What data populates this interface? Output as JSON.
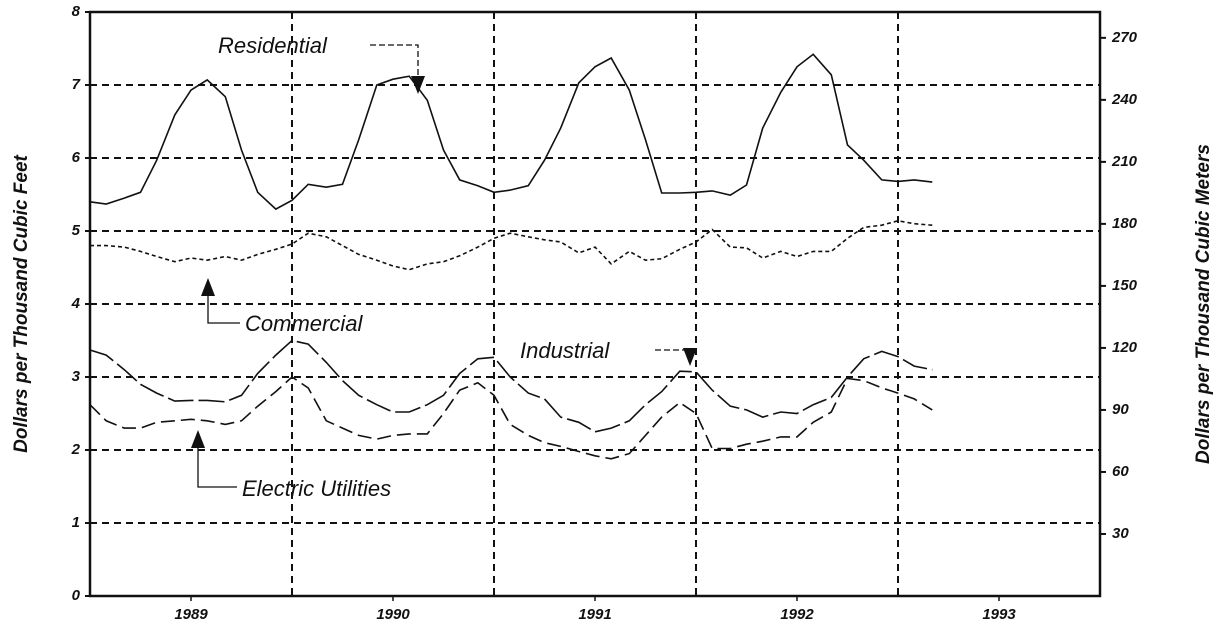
{
  "chart_data": {
    "type": "line",
    "ylabel": "Dollars per Thousand Cubic Feet",
    "y2label": "Dollars per Thousand Cubic Meters",
    "xlim": [
      1989,
      1994
    ],
    "xticks": [
      {
        "value": 1989.5,
        "label": "1989"
      },
      {
        "value": 1990.5,
        "label": "1990"
      },
      {
        "value": 1991.5,
        "label": "1991"
      },
      {
        "value": 1992.5,
        "label": "1992"
      },
      {
        "value": 1993.5,
        "label": "1993"
      }
    ],
    "xgrid": [
      1990,
      1991,
      1992,
      1993
    ],
    "ylim": [
      0,
      8
    ],
    "yticks": [
      0,
      1,
      2,
      3,
      4,
      5,
      6,
      7,
      8
    ],
    "y2lim": [
      0,
      282.5
    ],
    "y2ticks": [
      30,
      60,
      90,
      120,
      150,
      180,
      210,
      240,
      270
    ],
    "grid": true,
    "x": [
      1989.0,
      1989.08,
      1989.17,
      1989.25,
      1989.33,
      1989.42,
      1989.5,
      1989.58,
      1989.67,
      1989.75,
      1989.83,
      1989.92,
      1990.0,
      1990.08,
      1990.17,
      1990.25,
      1990.33,
      1990.42,
      1990.5,
      1990.58,
      1990.67,
      1990.75,
      1990.83,
      1990.92,
      1991.0,
      1991.08,
      1991.17,
      1991.25,
      1991.33,
      1991.42,
      1991.5,
      1991.58,
      1991.67,
      1991.75,
      1991.83,
      1991.92,
      1992.0,
      1992.08,
      1992.17,
      1992.25,
      1992.33,
      1992.42,
      1992.5,
      1992.58,
      1992.67,
      1992.75,
      1992.83,
      1992.92,
      1993.0,
      1993.08,
      1993.17
    ],
    "series": [
      {
        "name": "Residential",
        "color": "#111111",
        "dash": "none",
        "values": [
          5.4,
          5.37,
          5.45,
          5.53,
          5.97,
          6.59,
          6.93,
          7.07,
          6.84,
          6.11,
          5.53,
          5.3,
          5.42,
          5.64,
          5.6,
          5.64,
          6.25,
          7.0,
          7.08,
          7.12,
          6.79,
          6.11,
          5.7,
          5.62,
          5.53,
          5.56,
          5.62,
          5.97,
          6.41,
          7.03,
          7.25,
          7.37,
          6.93,
          6.25,
          5.52,
          5.52,
          5.53,
          5.55,
          5.49,
          5.63,
          6.41,
          6.9,
          7.25,
          7.42,
          7.14,
          6.18,
          5.97,
          5.7,
          5.68,
          5.7,
          5.67
        ]
      },
      {
        "name": "Commercial",
        "color": "#111111",
        "dash": "4,3",
        "values": [
          4.8,
          4.8,
          4.78,
          4.72,
          4.65,
          4.58,
          4.63,
          4.6,
          4.65,
          4.6,
          4.68,
          4.75,
          4.82,
          4.97,
          4.92,
          4.8,
          4.68,
          4.6,
          4.52,
          4.47,
          4.55,
          4.58,
          4.66,
          4.78,
          4.9,
          4.97,
          4.92,
          4.88,
          4.85,
          4.7,
          4.78,
          4.55,
          4.72,
          4.6,
          4.62,
          4.75,
          4.85,
          5.02,
          4.78,
          4.77,
          4.63,
          4.72,
          4.65,
          4.72,
          4.72,
          4.9,
          5.05,
          5.08,
          5.14,
          5.1,
          5.08
        ]
      },
      {
        "name": "Industrial",
        "color": "#111111",
        "dash": "26,5",
        "values": [
          3.37,
          3.3,
          3.1,
          2.9,
          2.78,
          2.67,
          2.68,
          2.68,
          2.66,
          2.75,
          3.05,
          3.3,
          3.5,
          3.45,
          3.2,
          2.95,
          2.75,
          2.62,
          2.52,
          2.52,
          2.62,
          2.75,
          3.05,
          3.25,
          3.27,
          3.0,
          2.78,
          2.7,
          2.45,
          2.38,
          2.25,
          2.3,
          2.4,
          2.62,
          2.8,
          3.08,
          3.07,
          2.82,
          2.6,
          2.55,
          2.45,
          2.52,
          2.5,
          2.62,
          2.72,
          3.0,
          3.25,
          3.35,
          3.28,
          3.15,
          3.1
        ]
      },
      {
        "name": "Electric Utilities",
        "color": "#111111",
        "dash": "14,6",
        "values": [
          2.62,
          2.4,
          2.3,
          2.3,
          2.38,
          2.4,
          2.42,
          2.4,
          2.35,
          2.4,
          2.6,
          2.8,
          3.0,
          2.85,
          2.4,
          2.3,
          2.2,
          2.15,
          2.2,
          2.22,
          2.22,
          2.5,
          2.82,
          2.92,
          2.75,
          2.35,
          2.2,
          2.1,
          2.05,
          1.98,
          1.92,
          1.88,
          1.95,
          2.2,
          2.45,
          2.65,
          2.5,
          2.02,
          2.02,
          2.08,
          2.12,
          2.18,
          2.18,
          2.38,
          2.52,
          2.98,
          2.95,
          2.85,
          2.78,
          2.7,
          2.55
        ]
      }
    ]
  }
}
